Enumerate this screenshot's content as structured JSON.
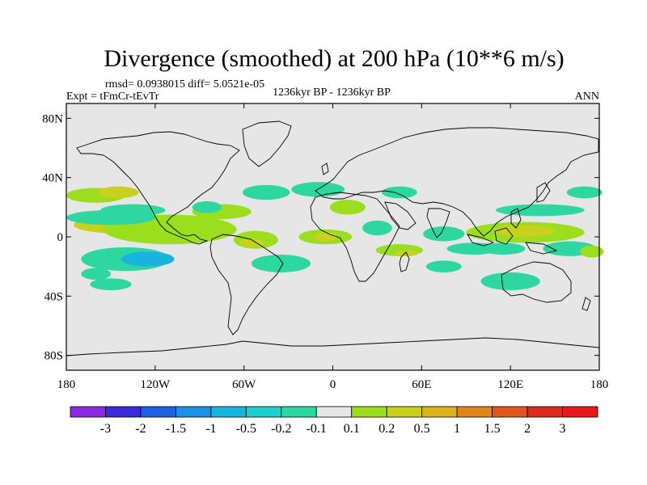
{
  "chart_data": {
    "type": "heatmap",
    "title": "Divergence (smoothed) at 200 hPa (10**6 m/s)",
    "stats_line": "rmsd= 0.0938015 diff= 5.0521e-05",
    "experiment": "Expt = tFmCr-tEvTr",
    "period": "1236kyr BP - 1236kyr BP",
    "season": "ANN",
    "x_axis": {
      "range": [
        -180,
        180
      ],
      "tick_values": [
        -180,
        -120,
        -60,
        0,
        60,
        120,
        180
      ],
      "tick_labels": [
        "180",
        "120W",
        "60W",
        "0",
        "60E",
        "120E",
        "180"
      ]
    },
    "y_axis": {
      "range": [
        -90,
        90
      ],
      "tick_values": [
        80,
        40,
        0,
        -40,
        -80
      ],
      "tick_labels": [
        "80N",
        "40N",
        "0",
        "40S",
        "80S"
      ]
    },
    "colorbar": {
      "labels": [
        "-3",
        "-2",
        "-1.5",
        "-1",
        "-0.5",
        "-0.2",
        "-0.1",
        "0.1",
        "0.2",
        "0.5",
        "1",
        "1.5",
        "2",
        "3"
      ],
      "colors": [
        "#8a2be2",
        "#3a2ad8",
        "#1f5fe0",
        "#1e90e6",
        "#19b4de",
        "#1fcfcf",
        "#2ed79f",
        "#e6e6e6",
        "#9ade1e",
        "#c8d21e",
        "#dcb21e",
        "#e2841e",
        "#e0571e",
        "#dc2b1e",
        "#e61a1a"
      ]
    },
    "fields": [
      {
        "lon": -140,
        "lat": 8,
        "rx": 35,
        "ry": 6,
        "color": "#c8d21e"
      },
      {
        "lon": -110,
        "lat": 5,
        "rx": 45,
        "ry": 10,
        "color": "#9ade1e"
      },
      {
        "lon": -160,
        "lat": 28,
        "rx": 20,
        "ry": 5,
        "color": "#9ade1e"
      },
      {
        "lon": -145,
        "lat": 30,
        "rx": 14,
        "ry": 4,
        "color": "#c8d21e"
      },
      {
        "lon": -150,
        "lat": 13,
        "rx": 30,
        "ry": 5,
        "color": "#2ed79f"
      },
      {
        "lon": -135,
        "lat": 18,
        "rx": 22,
        "ry": 4,
        "color": "#2ed79f"
      },
      {
        "lon": -140,
        "lat": -15,
        "rx": 30,
        "ry": 8,
        "color": "#2ed79f"
      },
      {
        "lon": -125,
        "lat": -15,
        "rx": 18,
        "ry": 5,
        "color": "#19b4de"
      },
      {
        "lon": -160,
        "lat": -25,
        "rx": 10,
        "ry": 4,
        "color": "#2ed79f"
      },
      {
        "lon": -150,
        "lat": -32,
        "rx": 14,
        "ry": 4,
        "color": "#2ed79f"
      },
      {
        "lon": -75,
        "lat": 17,
        "rx": 20,
        "ry": 5,
        "color": "#9ade1e"
      },
      {
        "lon": -85,
        "lat": 20,
        "rx": 10,
        "ry": 4,
        "color": "#2ed79f"
      },
      {
        "lon": -52,
        "lat": -2,
        "rx": 15,
        "ry": 6,
        "color": "#9ade1e"
      },
      {
        "lon": -55,
        "lat": -4,
        "rx": 8,
        "ry": 3,
        "color": "#c8d21e"
      },
      {
        "lon": -35,
        "lat": -18,
        "rx": 20,
        "ry": 6,
        "color": "#2ed79f"
      },
      {
        "lon": -45,
        "lat": 30,
        "rx": 16,
        "ry": 5,
        "color": "#2ed79f"
      },
      {
        "lon": -10,
        "lat": 32,
        "rx": 18,
        "ry": 5,
        "color": "#2ed79f"
      },
      {
        "lon": 10,
        "lat": 20,
        "rx": 12,
        "ry": 5,
        "color": "#9ade1e"
      },
      {
        "lon": -5,
        "lat": 0,
        "rx": 18,
        "ry": 5,
        "color": "#9ade1e"
      },
      {
        "lon": -5,
        "lat": 0,
        "rx": 8,
        "ry": 3,
        "color": "#c8d21e"
      },
      {
        "lon": 30,
        "lat": 6,
        "rx": 10,
        "ry": 5,
        "color": "#2ed79f"
      },
      {
        "lon": 45,
        "lat": 30,
        "rx": 12,
        "ry": 4,
        "color": "#2ed79f"
      },
      {
        "lon": 45,
        "lat": -9,
        "rx": 16,
        "ry": 4,
        "color": "#9ade1e"
      },
      {
        "lon": 50,
        "lat": -11,
        "rx": 8,
        "ry": 2,
        "color": "#c8d21e"
      },
      {
        "lon": 75,
        "lat": 2,
        "rx": 14,
        "ry": 5,
        "color": "#2ed79f"
      },
      {
        "lon": 95,
        "lat": -8,
        "rx": 18,
        "ry": 4,
        "color": "#2ed79f"
      },
      {
        "lon": 75,
        "lat": -20,
        "rx": 12,
        "ry": 4,
        "color": "#2ed79f"
      },
      {
        "lon": 130,
        "lat": 3,
        "rx": 40,
        "ry": 7,
        "color": "#9ade1e"
      },
      {
        "lon": 130,
        "lat": 4,
        "rx": 20,
        "ry": 4,
        "color": "#c8d21e"
      },
      {
        "lon": 140,
        "lat": 18,
        "rx": 30,
        "ry": 4,
        "color": "#2ed79f"
      },
      {
        "lon": 115,
        "lat": -8,
        "rx": 15,
        "ry": 4,
        "color": "#2ed79f"
      },
      {
        "lon": 160,
        "lat": -8,
        "rx": 18,
        "ry": 5,
        "color": "#2ed79f"
      },
      {
        "lon": 120,
        "lat": -30,
        "rx": 20,
        "ry": 6,
        "color": "#2ed79f"
      },
      {
        "lon": 170,
        "lat": 30,
        "rx": 12,
        "ry": 4,
        "color": "#2ed79f"
      },
      {
        "lon": 175,
        "lat": -10,
        "rx": 8,
        "ry": 4,
        "color": "#9ade1e"
      }
    ],
    "map_background": "#e6e6e6"
  }
}
